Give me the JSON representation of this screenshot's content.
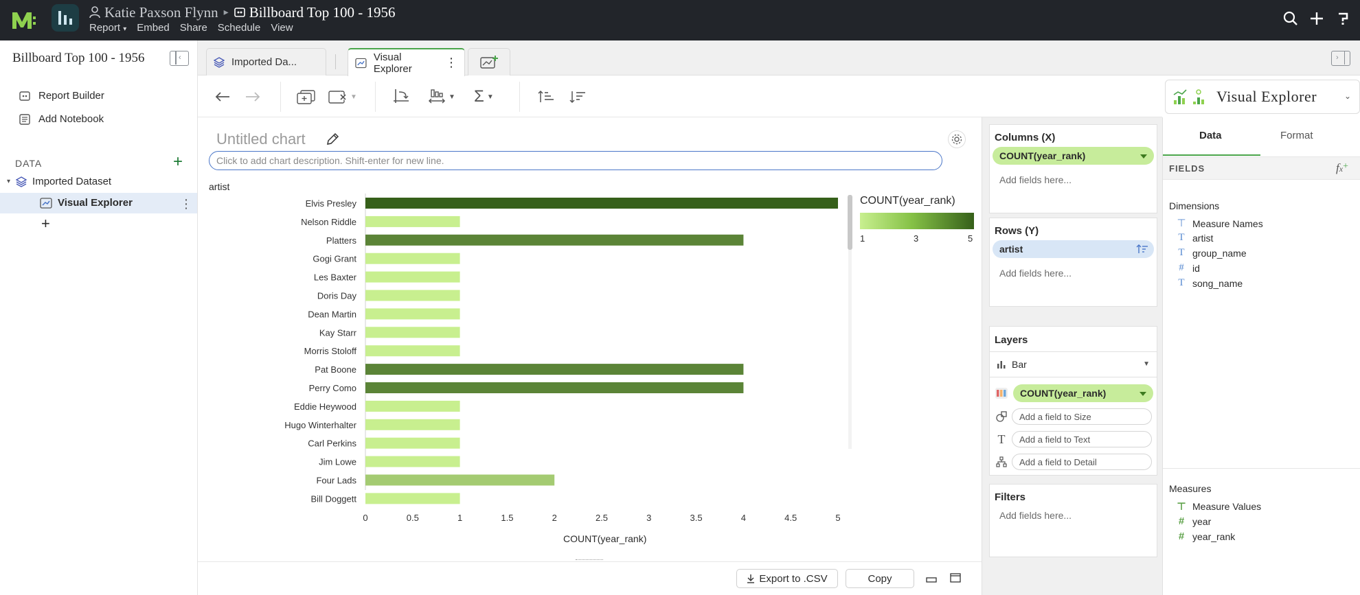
{
  "header": {
    "owner": "Katie Paxson Flynn",
    "report_title": "Billboard Top 100 - 1956",
    "menu": [
      "Report",
      "Embed",
      "Share",
      "Schedule",
      "View"
    ]
  },
  "sidebar": {
    "title": "Billboard Top 100 - 1956",
    "items": [
      {
        "label": "Report Builder",
        "icon": "report-builder-icon"
      },
      {
        "label": "Add Notebook",
        "icon": "notebook-icon"
      }
    ],
    "data_label": "DATA",
    "dataset": "Imported Dataset",
    "explorer": "Visual Explorer"
  },
  "tabs": {
    "tab1": "Imported Da...",
    "tab2": "Visual Explorer"
  },
  "toolbar": {
    "explorer_select": "Visual Explorer"
  },
  "chart": {
    "title": "Untitled chart",
    "description_placeholder": "Click to add chart description. Shift-enter for new line.",
    "legend_title": "COUNT(year_rank)",
    "legend_ticks": [
      "1",
      "3",
      "5"
    ],
    "export_label": "Export to .CSV",
    "copy_label": "Copy"
  },
  "chart_data": {
    "type": "bar",
    "orientation": "horizontal",
    "ylabel": "artist",
    "xlabel": "COUNT(year_rank)",
    "xlim": [
      0,
      5
    ],
    "xticks": [
      "0",
      "0.5",
      "1",
      "1.5",
      "2",
      "2.5",
      "3",
      "3.5",
      "4",
      "4.5",
      "5"
    ],
    "categories": [
      "Elvis Presley",
      "Nelson Riddle",
      "Platters",
      "Gogi Grant",
      "Les Baxter",
      "Doris Day",
      "Dean Martin",
      "Kay Starr",
      "Morris Stoloff",
      "Pat Boone",
      "Perry Como",
      "Eddie Heywood",
      "Hugo Winterhalter",
      "Carl Perkins",
      "Jim Lowe",
      "Four Lads",
      "Bill Doggett"
    ],
    "values": [
      5,
      1,
      4,
      1,
      1,
      1,
      1,
      1,
      1,
      4,
      4,
      1,
      1,
      1,
      1,
      2,
      1
    ],
    "color_scale": {
      "min": 1,
      "max": 5,
      "low": "#c8ef8f",
      "high": "#36601a"
    }
  },
  "config": {
    "columns": {
      "title": "Columns (X)",
      "pill": "COUNT(year_rank)",
      "add": "Add fields here..."
    },
    "rows": {
      "title": "Rows (Y)",
      "pill": "artist",
      "add": "Add fields here..."
    },
    "layers": {
      "title": "Layers",
      "mark": "Bar",
      "color_field": "COUNT(year_rank)",
      "size_placeholder": "Add a field to Size",
      "text_placeholder": "Add a field to Text",
      "detail_placeholder": "Add a field to Detail"
    },
    "filters": {
      "title": "Filters",
      "add": "Add fields here..."
    }
  },
  "fields": {
    "tabs": [
      "Data",
      "Format"
    ],
    "header": "FIELDS",
    "dimensions_label": "Dimensions",
    "dimensions": [
      "Measure Names",
      "artist",
      "group_name",
      "id",
      "song_name"
    ],
    "measures_label": "Measures",
    "measures": [
      "Measure Values",
      "year",
      "year_rank"
    ]
  }
}
